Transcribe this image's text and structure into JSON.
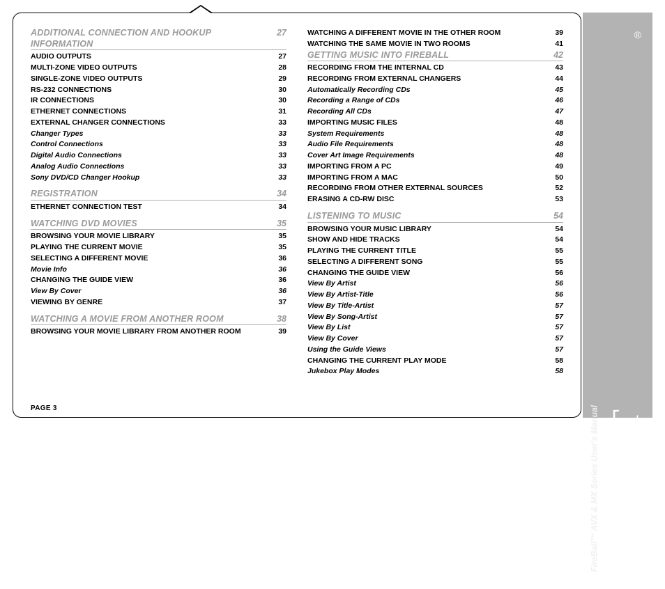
{
  "page_label": "PAGE 3",
  "sidebar": {
    "logo": "ESCIENT",
    "reg": "®",
    "subtitle": "FireBall™ AVX & MX Series User's Manual"
  },
  "left": [
    {
      "type": "section",
      "title": "ADDITIONAL CONNECTION AND HOOKUP INFORMATION",
      "page": "27"
    },
    {
      "type": "item",
      "style": "bold",
      "label": "AUDIO OUTPUTS",
      "page": "27"
    },
    {
      "type": "item",
      "style": "bold",
      "label": "MULTI-ZONE VIDEO OUTPUTS",
      "page": "28"
    },
    {
      "type": "item",
      "style": "bold",
      "label": "SINGLE-ZONE VIDEO OUTPUTS",
      "page": "29"
    },
    {
      "type": "item",
      "style": "bold",
      "label": "RS-232 CONNECTIONS",
      "page": "30"
    },
    {
      "type": "item",
      "style": "bold",
      "label": "IR CONNECTIONS",
      "page": "30"
    },
    {
      "type": "item",
      "style": "bold",
      "label": "ETHERNET CONNECTIONS",
      "page": "31"
    },
    {
      "type": "item",
      "style": "bold",
      "label": "EXTERNAL CHANGER CONNECTIONS",
      "page": "33"
    },
    {
      "type": "item",
      "style": "ital",
      "label": "Changer Types",
      "page": "33"
    },
    {
      "type": "item",
      "style": "ital",
      "label": "Control Connections",
      "page": "33"
    },
    {
      "type": "item",
      "style": "ital",
      "label": "Digital Audio Connections",
      "page": "33"
    },
    {
      "type": "item",
      "style": "ital",
      "label": "Analog Audio Connections",
      "page": "33"
    },
    {
      "type": "item",
      "style": "ital",
      "label": "Sony DVD/CD Changer Hookup",
      "page": "33"
    },
    {
      "type": "section",
      "title": "REGISTRATION",
      "page": "34"
    },
    {
      "type": "item",
      "style": "bold",
      "label": "ETHERNET CONNECTION TEST",
      "page": "34"
    },
    {
      "type": "section",
      "title": "WATCHING DVD MOVIES",
      "page": "35"
    },
    {
      "type": "item",
      "style": "bold",
      "label": "BROWSING YOUR MOVIE LIBRARY",
      "page": "35"
    },
    {
      "type": "item",
      "style": "bold",
      "label": "PLAYING THE CURRENT MOVIE",
      "page": "35"
    },
    {
      "type": "item",
      "style": "bold",
      "label": "SELECTING A DIFFERENT MOVIE",
      "page": "36"
    },
    {
      "type": "item",
      "style": "ital",
      "label": "Movie Info",
      "page": "36"
    },
    {
      "type": "item",
      "style": "bold",
      "label": "CHANGING THE GUIDE VIEW",
      "page": "36"
    },
    {
      "type": "item",
      "style": "ital",
      "label": "View By Cover",
      "page": "36"
    },
    {
      "type": "item",
      "style": "bold",
      "label": "VIEWING BY GENRE",
      "page": "37"
    },
    {
      "type": "section",
      "title": "WATCHING A MOVIE FROM ANOTHER ROOM",
      "page": "38"
    },
    {
      "type": "item",
      "style": "bold",
      "label": "BROWSING YOUR MOVIE LIBRARY FROM ANOTHER ROOM",
      "page": "39"
    }
  ],
  "right": [
    {
      "type": "item",
      "style": "bold",
      "label": "WATCHING A DIFFERENT MOVIE IN THE OTHER ROOM",
      "page": "39"
    },
    {
      "type": "item",
      "style": "bold",
      "label": "WATCHING THE SAME MOVIE IN TWO ROOMS",
      "page": "41"
    },
    {
      "type": "section",
      "title": "GETTING MUSIC INTO FIREBALL",
      "page": "42"
    },
    {
      "type": "item",
      "style": "bold",
      "label": "RECORDING FROM THE INTERNAL CD",
      "page": "43"
    },
    {
      "type": "item",
      "style": "bold",
      "label": "RECORDING FROM EXTERNAL CHANGERS",
      "page": "44"
    },
    {
      "type": "item",
      "style": "ital",
      "label": "Automatically Recording CDs",
      "page": "45"
    },
    {
      "type": "item",
      "style": "ital",
      "label": "Recording a Range of CDs",
      "page": "46"
    },
    {
      "type": "item",
      "style": "ital",
      "label": "Recording All CDs",
      "page": "47"
    },
    {
      "type": "item",
      "style": "bold",
      "label": "IMPORTING MUSIC FILES",
      "page": "48"
    },
    {
      "type": "item",
      "style": "ital",
      "label": "System Requirements",
      "page": "48"
    },
    {
      "type": "item",
      "style": "ital",
      "label": "Audio File Requirements",
      "page": "48"
    },
    {
      "type": "item",
      "style": "ital",
      "label": "Cover Art Image Requirements",
      "page": "48"
    },
    {
      "type": "item",
      "style": "bold",
      "label": "IMPORTING FROM A PC",
      "page": "49"
    },
    {
      "type": "item",
      "style": "bold",
      "label": "IMPORTING FROM A MAC",
      "page": "50"
    },
    {
      "type": "item",
      "style": "bold",
      "label": "RECORDING FROM OTHER EXTERNAL SOURCES",
      "page": "52"
    },
    {
      "type": "item",
      "style": "bold",
      "label": "ERASING A CD-RW DISC",
      "page": "53"
    },
    {
      "type": "section",
      "title": "LISTENING TO MUSIC",
      "page": "54"
    },
    {
      "type": "item",
      "style": "bold",
      "label": "BROWSING YOUR MUSIC LIBRARY",
      "page": "54"
    },
    {
      "type": "item",
      "style": "bold",
      "label": "SHOW AND HIDE TRACKS",
      "page": "54"
    },
    {
      "type": "item",
      "style": "bold",
      "label": "PLAYING THE CURRENT TITLE",
      "page": "55"
    },
    {
      "type": "item",
      "style": "bold",
      "label": "SELECTING A DIFFERENT SONG",
      "page": "55"
    },
    {
      "type": "item",
      "style": "bold",
      "label": "CHANGING THE GUIDE VIEW",
      "page": "56"
    },
    {
      "type": "item",
      "style": "ital",
      "label": "View By Artist",
      "page": "56"
    },
    {
      "type": "item",
      "style": "ital",
      "label": "View By Artist-Title",
      "page": "56"
    },
    {
      "type": "item",
      "style": "ital",
      "label": "View By Title-Artist",
      "page": "57"
    },
    {
      "type": "item",
      "style": "ital",
      "label": "View By Song-Artist",
      "page": "57"
    },
    {
      "type": "item",
      "style": "ital",
      "label": "View By List",
      "page": "57"
    },
    {
      "type": "item",
      "style": "ital",
      "label": "View By Cover",
      "page": "57"
    },
    {
      "type": "item",
      "style": "ital",
      "label": "Using the Guide Views",
      "page": "57"
    },
    {
      "type": "item",
      "style": "bold",
      "label": "CHANGING THE CURRENT PLAY MODE",
      "page": "58"
    },
    {
      "type": "item",
      "style": "ital",
      "label": "Jukebox Play Modes",
      "page": "58"
    }
  ]
}
